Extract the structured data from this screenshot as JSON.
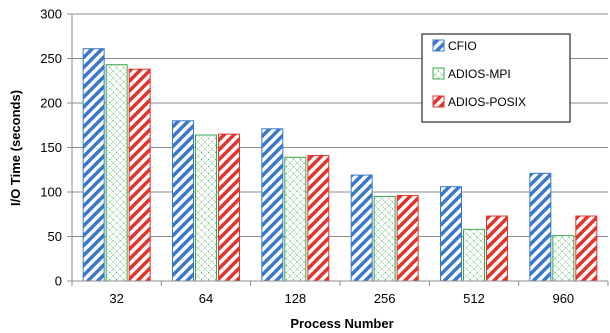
{
  "chart_data": {
    "type": "bar",
    "title": "",
    "xlabel": "Process Number",
    "ylabel": "I/O Time (seconds)",
    "categories": [
      "32",
      "64",
      "128",
      "256",
      "512",
      "960"
    ],
    "ylim": [
      0,
      300
    ],
    "yticks": [
      0,
      50,
      100,
      150,
      200,
      250,
      300
    ],
    "grid": true,
    "legend_position": "top-right",
    "series": [
      {
        "name": "CFIO",
        "values": [
          261,
          180,
          171,
          119,
          106,
          121
        ],
        "color": "#3a78c9",
        "pattern": "diagonal-stripes"
      },
      {
        "name": "ADIOS-MPI",
        "values": [
          243,
          164,
          139,
          95,
          58,
          51
        ],
        "color": "#3aa64a",
        "pattern": "dotted-grid"
      },
      {
        "name": "ADIOS-POSIX",
        "values": [
          238,
          165,
          141,
          96,
          73,
          73
        ],
        "color": "#e0342c",
        "pattern": "diagonal-stripes"
      }
    ]
  }
}
